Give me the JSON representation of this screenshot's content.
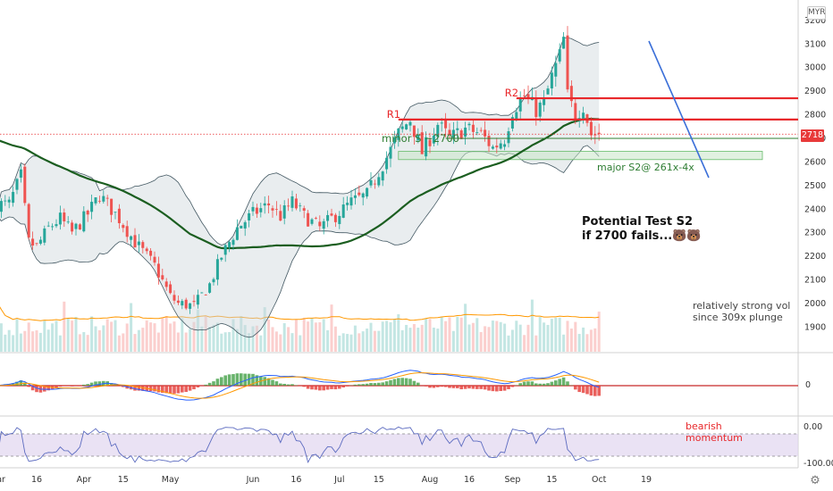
{
  "chart_data": {
    "type": "candlestick",
    "title": "",
    "currency": "MYR",
    "last_price": "2718",
    "x_axis": {
      "labels": [
        "Mar",
        "16",
        "Apr",
        "15",
        "May",
        "Jun",
        "16",
        "Jul",
        "15",
        "Aug",
        "16",
        "Sep",
        "15",
        "Oct",
        "19"
      ]
    },
    "price_axis": {
      "ticks": [
        3200,
        3100,
        3000,
        2900,
        2800,
        2700,
        2600,
        2500,
        2400,
        2300,
        2200,
        2100,
        2000,
        1900
      ],
      "range": [
        1820,
        3230
      ]
    },
    "price_anchors": {
      "dates": [
        "03-05",
        "03-10",
        "03-12",
        "03-16",
        "03-19",
        "03-24",
        "03-27",
        "04-02",
        "04-07",
        "04-14",
        "04-20",
        "04-27",
        "05-01",
        "05-05",
        "05-11",
        "05-15",
        "05-20",
        "05-26",
        "06-01",
        "06-05",
        "06-10",
        "06-15",
        "06-18",
        "06-24",
        "06-29",
        "07-02",
        "07-06",
        "07-10",
        "07-15",
        "07-20",
        "07-22",
        "07-27",
        "07-30",
        "08-05",
        "08-10",
        "08-14",
        "08-20",
        "08-25",
        "08-28",
        "09-01",
        "09-04",
        "09-09",
        "09-11",
        "09-15",
        "09-17",
        "09-18",
        "09-21",
        "09-23",
        "09-25",
        "09-29"
      ],
      "close": [
        2420,
        2540,
        2260,
        2240,
        2320,
        2360,
        2300,
        2380,
        2460,
        2360,
        2260,
        2160,
        2030,
        2000,
        1990,
        2080,
        2200,
        2320,
        2380,
        2420,
        2370,
        2430,
        2370,
        2320,
        2360,
        2400,
        2430,
        2460,
        2560,
        2650,
        2720,
        2780,
        2640,
        2760,
        2700,
        2740,
        2720,
        2660,
        2700,
        2820,
        2880,
        2820,
        2850,
        2960,
        3050,
        3120,
        2880,
        2800,
        2840,
        2718
      ]
    },
    "bollinger_band": "20-period",
    "moving_average": "long-period SMA (green)",
    "volume": {
      "ticks": [],
      "note": "bars with orange moving average"
    },
    "macd": {
      "zero_label": "0"
    },
    "oscillator": {
      "ticks": [
        "0.00",
        "-100.00"
      ]
    },
    "levels": [
      {
        "label": "R2",
        "price": 2870,
        "color": "#e8282b"
      },
      {
        "label": "R1",
        "price": 2780,
        "color": "#e8282b"
      },
      {
        "label": "minor S ~2700",
        "price": 2700,
        "color": "#2e7d32"
      }
    ],
    "support_zone": {
      "label": "major S2@ 261x-4x",
      "low": 2610,
      "high": 2645
    },
    "annotations": {
      "potential_test_line1": "Potential Test S2",
      "potential_test_line2": "if 2700 fails...🐻🐻",
      "volume_note_line1": "relatively strong vol",
      "volume_note_line2": "since 309x plunge",
      "momentum_line1": "bearish",
      "momentum_line2": "momentum"
    },
    "colors": {
      "up": "#26a69a",
      "down": "#ef5350",
      "band": "#cfd8dc",
      "ma": "#1b5e20",
      "resistance": "#e8282b",
      "support": "#2e7d32",
      "macd_line": "#2962ff",
      "signal_line": "#ff9800",
      "oscillator_fill": "#e1d5f0"
    }
  }
}
